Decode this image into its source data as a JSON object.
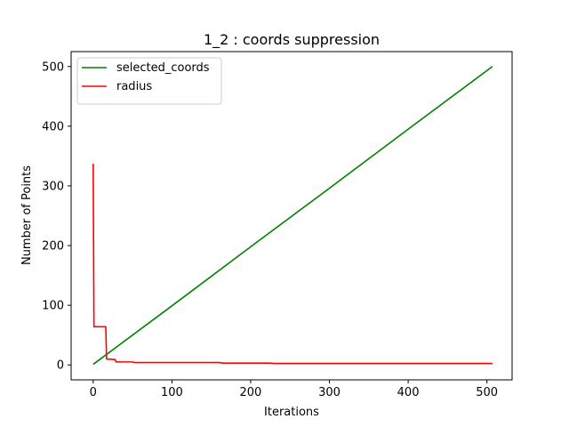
{
  "chart_data": {
    "type": "line",
    "title": "1_2 : coords suppression",
    "xlabel": "Iterations",
    "ylabel": "Number of Points",
    "xlim": [
      -28,
      532
    ],
    "ylim": [
      -25,
      525
    ],
    "xticks": [
      0,
      100,
      200,
      300,
      400,
      500
    ],
    "yticks": [
      0,
      100,
      200,
      300,
      400,
      500
    ],
    "xtick_labels": [
      "0",
      "100",
      "200",
      "300",
      "400",
      "500"
    ],
    "ytick_labels": [
      "0",
      "100",
      "200",
      "300",
      "400",
      "500"
    ],
    "grid": false,
    "legend_position": "top-left",
    "series": [
      {
        "name": "selected_coords",
        "color": "#008000",
        "points": [
          [
            0,
            1
          ],
          [
            100,
            99
          ],
          [
            200,
            198
          ],
          [
            300,
            296
          ],
          [
            400,
            395
          ],
          [
            507,
            500
          ]
        ]
      },
      {
        "name": "radius",
        "color": "#ff0000",
        "points": [
          [
            0,
            337
          ],
          [
            1,
            64
          ],
          [
            16,
            64
          ],
          [
            17,
            10
          ],
          [
            28,
            9
          ],
          [
            29,
            5
          ],
          [
            50,
            5
          ],
          [
            52,
            4
          ],
          [
            160,
            4
          ],
          [
            165,
            3
          ],
          [
            225,
            3
          ],
          [
            230,
            2.5
          ],
          [
            507,
            2.5
          ]
        ]
      }
    ]
  }
}
